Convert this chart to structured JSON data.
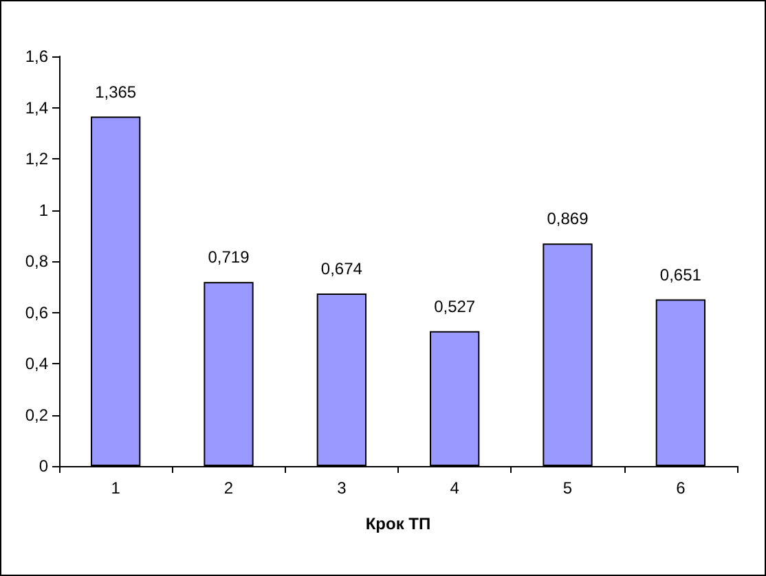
{
  "chart_data": {
    "type": "bar",
    "xlabel": "Крок ТП",
    "categories": [
      "1",
      "2",
      "3",
      "4",
      "5",
      "6"
    ],
    "values": [
      1.365,
      0.719,
      0.674,
      0.527,
      0.869,
      0.651
    ],
    "value_labels": [
      "1,365",
      "0,719",
      "0,674",
      "0,527",
      "0,869",
      "0,651"
    ],
    "color": "#9999ff",
    "ylim": [
      0,
      1.6
    ],
    "yticks": [
      0,
      {
        "value": 0.2,
        "label": "0,2"
      },
      {
        "value": 0.4,
        "label": "0,4"
      },
      {
        "value": 0.6,
        "label": "0,6"
      },
      {
        "value": 0.8,
        "label": "0,8"
      },
      1,
      {
        "value": 1.2,
        "label": "1,2"
      },
      {
        "value": 1.4,
        "label": "1,4"
      },
      {
        "value": 1.6,
        "label": "1,6"
      }
    ],
    "grid": false
  }
}
